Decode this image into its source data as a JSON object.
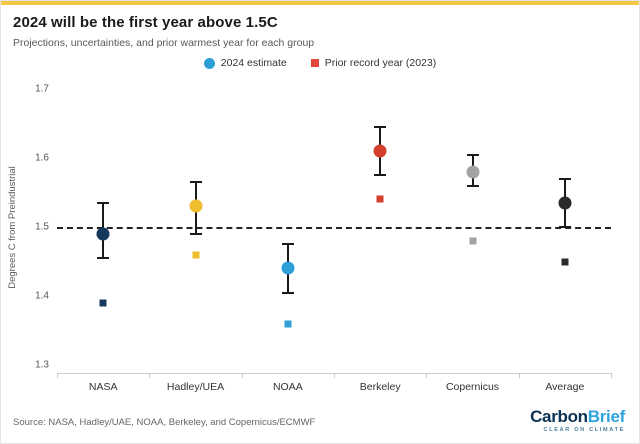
{
  "colors": {
    "accent_bar": "#F2C744",
    "title": "#1A1A1A",
    "subtitle": "#595959",
    "axis": "#CCCCCC",
    "tick_label": "#555555",
    "reference": "#222222",
    "error_bar": "#1A1A1A",
    "source": "#666666",
    "logo_carbon": "#0B3254",
    "logo_brief": "#2EA3DC",
    "logo_tagline": "#4A7C9B"
  },
  "header": {
    "title": "2024 will be the first year above 1.5C",
    "subtitle": "Projections, uncertainties, and prior warmest year for each group"
  },
  "legend": [
    {
      "label": "2024 estimate",
      "shape": "circle",
      "color": "#2E9FD6"
    },
    {
      "label": "Prior record year (2023)",
      "shape": "square",
      "color": "#E2493B"
    }
  ],
  "footer": {
    "source": "Source: NASA, Hadley/UAE, NOAA, Berkeley, and Copernicus/ECMWF",
    "logo_carbon": "Carbon",
    "logo_brief": "Brief",
    "logo_tagline": "CLEAR ON CLIMATE"
  },
  "chart_data": {
    "type": "scatter",
    "title": "2024 will be the first year above 1.5C",
    "subtitle": "Projections, uncertainties, and prior warmest year for each group",
    "xlabel": "",
    "ylabel": "Degrees C from Preindustrial",
    "ylim": [
      1.3,
      1.7
    ],
    "yticks": [
      "1.3",
      "1.4",
      "1.5",
      "1.6",
      "1.7"
    ],
    "reference_line": 1.5,
    "grid": false,
    "legend_position": "top-center",
    "categories": [
      "NASA",
      "Hadley/UEA",
      "NOAA",
      "Berkeley",
      "Copernicus",
      "Average"
    ],
    "series": [
      {
        "name": "2024 estimate",
        "marker": "circle",
        "values": [
          1.49,
          1.53,
          1.44,
          1.61,
          1.58,
          1.535
        ],
        "error_low": [
          1.455,
          1.49,
          1.405,
          1.575,
          1.56,
          1.5
        ],
        "error_high": [
          1.535,
          1.565,
          1.475,
          1.645,
          1.605,
          1.57
        ],
        "colors": [
          "#14395C",
          "#EEBE2E",
          "#2E9FD6",
          "#D5402E",
          "#A3A3A3",
          "#2B2B2B"
        ]
      },
      {
        "name": "Prior record year (2023)",
        "marker": "square",
        "values": [
          1.39,
          1.46,
          1.36,
          1.54,
          1.48,
          1.45
        ],
        "colors": [
          "#14395C",
          "#EEBE2E",
          "#2E9FD6",
          "#D5402E",
          "#A3A3A3",
          "#2B2B2B"
        ]
      }
    ]
  }
}
